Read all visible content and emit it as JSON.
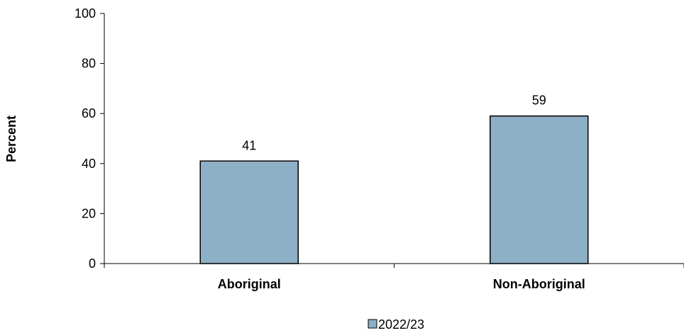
{
  "chart_data": {
    "type": "bar",
    "categories": [
      "Aboriginal",
      "Non-Aboriginal"
    ],
    "series": [
      {
        "name": "2022/23",
        "values": [
          41,
          59
        ]
      }
    ],
    "data_labels": [
      "41",
      "59"
    ],
    "title": "",
    "xlabel": "",
    "ylabel": "Percent",
    "ylim": [
      0,
      100
    ],
    "yticks": [
      0,
      20,
      40,
      60,
      80,
      100
    ],
    "ytick_labels": [
      "0",
      "20",
      "40",
      "60",
      "80",
      "100"
    ],
    "grid": false,
    "legend_position": "bottom",
    "bar_color": "#8eb0c6",
    "bar_edge_color": "#000000"
  }
}
